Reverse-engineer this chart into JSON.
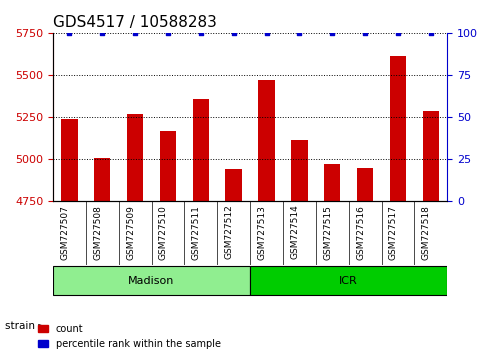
{
  "title": "GDS4517 / 10588283",
  "samples": [
    "GSM727507",
    "GSM727508",
    "GSM727509",
    "GSM727510",
    "GSM727511",
    "GSM727512",
    "GSM727513",
    "GSM727514",
    "GSM727515",
    "GSM727516",
    "GSM727517",
    "GSM727518"
  ],
  "counts": [
    5240,
    5005,
    5265,
    5165,
    5355,
    4940,
    5470,
    5115,
    4970,
    4950,
    5610,
    5285
  ],
  "percentiles": [
    100,
    100,
    100,
    100,
    100,
    100,
    100,
    100,
    100,
    100,
    100,
    100
  ],
  "ylim_left": [
    4750,
    5750
  ],
  "ylim_right": [
    0,
    100
  ],
  "yticks_left": [
    4750,
    5000,
    5250,
    5500,
    5750
  ],
  "yticks_right": [
    0,
    25,
    50,
    75,
    100
  ],
  "bar_color": "#CC0000",
  "scatter_color": "#0000CC",
  "bar_width": 0.5,
  "madison_samples": [
    "GSM727507",
    "GSM727508",
    "GSM727509",
    "GSM727510",
    "GSM727511",
    "GSM727512"
  ],
  "icr_samples": [
    "GSM727513",
    "GSM727514",
    "GSM727515",
    "GSM727516",
    "GSM727517",
    "GSM727518"
  ],
  "madison_color": "#90EE90",
  "icr_color": "#00CC00",
  "strain_label": "strain",
  "legend_count_label": "count",
  "legend_pct_label": "percentile rank within the sample",
  "title_fontsize": 11,
  "axis_label_color_left": "#CC0000",
  "axis_label_color_right": "#0000CC",
  "grid_color": "#000000",
  "background_color": "#ffffff",
  "plot_bg": "#ffffff"
}
